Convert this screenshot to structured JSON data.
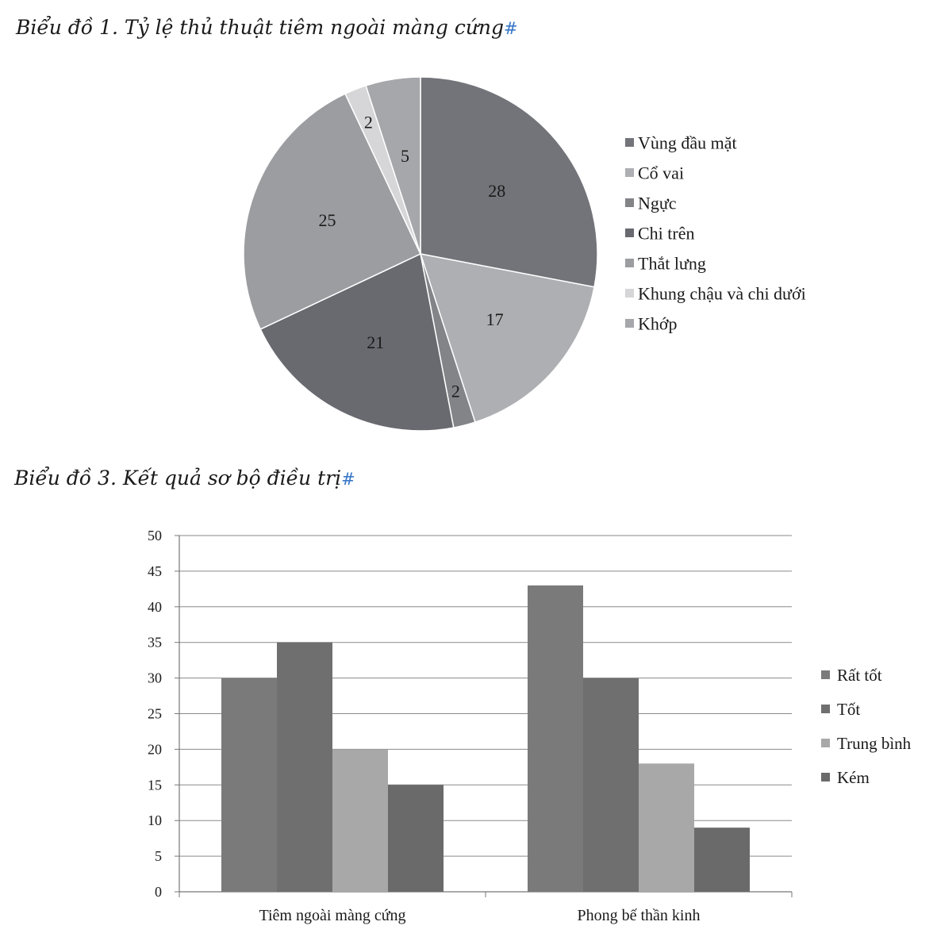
{
  "captions": {
    "chart1": "Biểu đồ 1. Tỷ lệ thủ thuật tiêm ngoài màng cứng",
    "chart2": "Biểu đồ 3. Kết quả sơ bộ điều trị",
    "mark": "#"
  },
  "chart_data": [
    {
      "type": "pie",
      "title": "Biểu đồ 1. Tỷ lệ thủ thuật tiêm ngoài màng cứng",
      "categories": [
        "Vùng đầu mặt",
        "Cổ vai",
        "Ngực",
        "Chi trên",
        "Thắt lưng",
        "Khung chậu và chi dưới",
        "Khớp"
      ],
      "values": [
        28,
        17,
        2,
        21,
        25,
        2,
        5
      ],
      "colors": [
        "#737479",
        "#aeafb3",
        "#838488",
        "#696a6f",
        "#9c9da1",
        "#d6d6d8",
        "#a6a7ab"
      ],
      "data_labels": true,
      "legend": "right"
    },
    {
      "type": "bar",
      "title": "Biểu đồ 3. Kết quả sơ bộ điều trị",
      "categories": [
        "Tiêm ngoài màng cứng",
        "Phong bế thần kinh"
      ],
      "series": [
        {
          "name": "Rất tốt",
          "values": [
            30,
            43
          ],
          "color": "#7a7a7a"
        },
        {
          "name": "Tốt",
          "values": [
            35,
            30
          ],
          "color": "#6f6f6f"
        },
        {
          "name": "Trung bình",
          "values": [
            20,
            18
          ],
          "color": "#a8a8a8"
        },
        {
          "name": "Kém",
          "values": [
            15,
            9
          ],
          "color": "#6a6a6a"
        }
      ],
      "xlabel": "",
      "ylabel": "",
      "ylim": [
        0,
        50
      ],
      "yticks": [
        0,
        5,
        10,
        15,
        20,
        25,
        30,
        35,
        40,
        45,
        50
      ],
      "grid": true,
      "legend": "right"
    }
  ]
}
